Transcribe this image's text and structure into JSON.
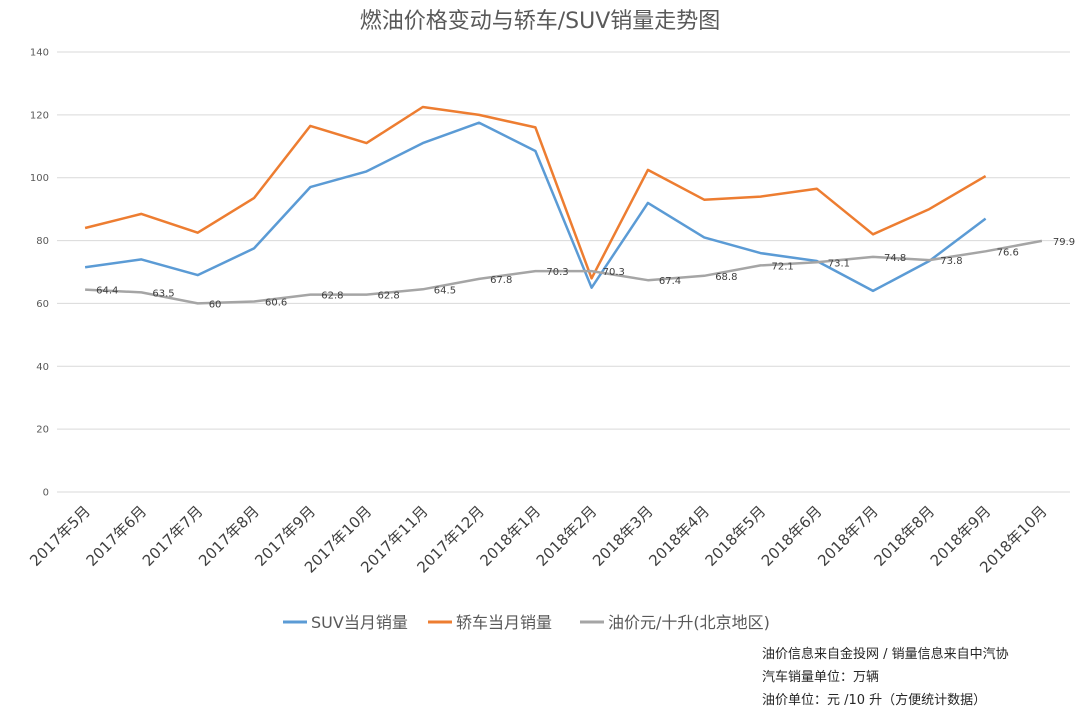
{
  "chart_data": {
    "type": "line",
    "title": "燃油价格变动与轿车/SUV销量走势图",
    "categories": [
      "2017年5月",
      "2017年6月",
      "2017年7月",
      "2017年8月",
      "2017年9月",
      "2017年10月",
      "2017年11月",
      "2017年12月",
      "2018年1月",
      "2018年2月",
      "2018年3月",
      "2018年4月",
      "2018年5月",
      "2018年6月",
      "2018年7月",
      "2018年8月",
      "2018年9月",
      "2018年10月"
    ],
    "ylim": [
      0,
      140
    ],
    "yticks": [
      "0",
      "20",
      "40",
      "60",
      "80",
      "100",
      "120",
      "140"
    ],
    "grid": true,
    "legend_position": "bottom",
    "series": [
      {
        "name": "SUV当月销量",
        "color": "#5b9bd5",
        "values": [
          71.5,
          74,
          69,
          77.5,
          97,
          102,
          111,
          117.5,
          108.5,
          65,
          92,
          81,
          76,
          73.5,
          64,
          73.5,
          87,
          null
        ]
      },
      {
        "name": "轿车当月销量",
        "color": "#ed7d31",
        "values": [
          84,
          88.5,
          82.5,
          93.5,
          116.5,
          111,
          122.5,
          120,
          116,
          68,
          102.5,
          93,
          94,
          96.5,
          82,
          90,
          100.5,
          null
        ]
      },
      {
        "name": "油价元/十升(北京地区)",
        "color": "#a5a5a5",
        "values": [
          64.4,
          63.5,
          60,
          60.6,
          62.8,
          62.8,
          64.5,
          67.8,
          70.3,
          70.3,
          67.4,
          68.8,
          72.1,
          73.1,
          74.8,
          73.8,
          76.6,
          79.9
        ],
        "labels": [
          "64.4",
          "63.5",
          "60",
          "60.6",
          "62.8",
          "62.8",
          "64.5",
          "67.8",
          "70.3",
          "70.3",
          "67.4",
          "68.8",
          "72.1",
          "73.1",
          "74.8",
          "73.8",
          "76.6",
          "79.9"
        ]
      }
    ]
  },
  "notes": {
    "source": "油价信息来自金投网 / 销量信息来自中汽协",
    "sales_unit": "汽车销量单位：万辆",
    "price_unit": "油价单位：元 /10 升（方便统计数据）"
  }
}
